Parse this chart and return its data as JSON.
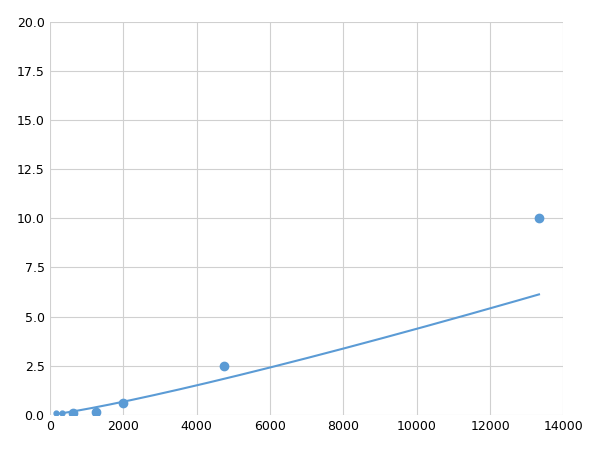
{
  "x": [
    156,
    313,
    625,
    1250,
    2000,
    4750,
    13333
  ],
  "y": [
    0.07,
    0.1,
    0.1,
    0.12,
    0.6,
    2.5,
    10.0
  ],
  "line_color": "#5b9bd5",
  "marker_color": "#5b9bd5",
  "marker_size": 6,
  "xlim": [
    0,
    14000
  ],
  "ylim": [
    0,
    20.0
  ],
  "xticks": [
    0,
    2000,
    4000,
    6000,
    8000,
    10000,
    12000,
    14000
  ],
  "yticks": [
    0.0,
    2.5,
    5.0,
    7.5,
    10.0,
    12.5,
    15.0,
    17.5,
    20.0
  ],
  "grid_color": "#d0d0d0",
  "background_color": "#ffffff"
}
